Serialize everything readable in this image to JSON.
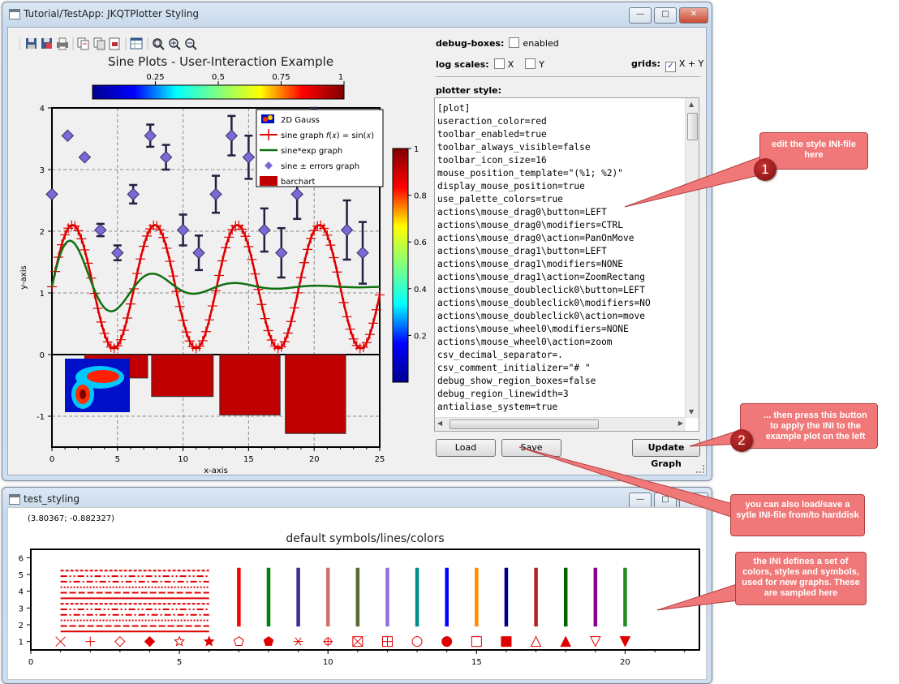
{
  "main_window": {
    "title": "Tutorial/TestApp: JKQTPlotter Styling",
    "win_buttons": {
      "minimize": "—",
      "maximize": "□",
      "close": "✕"
    },
    "toolbar_icons": [
      "save-data-icon",
      "save-image-icon",
      "print-icon",
      "copy-data-icon",
      "copy-image-icon",
      "save-pdf-icon",
      "show-data-table-icon",
      "zoom-all-icon",
      "zoom-in-icon",
      "zoom-out-icon"
    ],
    "plot": {
      "title": "Sine Plots - User-Interaction Example",
      "xlabel": "x-axis",
      "ylabel": "y-axis",
      "colorbar_top_ticks": [
        "0.25",
        "0.5",
        "0.75",
        "1"
      ],
      "colorbar_right_ticks": [
        "1",
        "0.8",
        "0.6",
        "0.4",
        "0.2"
      ],
      "legend": [
        {
          "label": "2D Gauss",
          "icon": "heatmap-icon"
        },
        {
          "label": "sine graph 𝑓(𝑥) =  sin(𝑥)",
          "icon": "red-plus-line-icon"
        },
        {
          "label": "sine*exp graph",
          "icon": "green-line-icon"
        },
        {
          "label": "sine ± errors graph",
          "icon": "purple-diamond-icon"
        },
        {
          "label": "barchart",
          "icon": "darkred-bar-icon"
        }
      ]
    },
    "chart_data": {
      "type": "line",
      "xlim": [
        0,
        25
      ],
      "ylim": [
        -1.5,
        4
      ],
      "x_ticks": [
        "0",
        "5",
        "10",
        "15",
        "20",
        "25"
      ],
      "y_ticks": [
        "-1",
        "0",
        "1",
        "2",
        "3",
        "4"
      ],
      "grid": true,
      "legend_position": "top-right",
      "series": [
        {
          "name": "sine graph 𝑓(𝑥) =  sin(𝑥)",
          "kind": "line",
          "function": "1.1+sin(x)",
          "x_start": 0,
          "x_end": 25,
          "color": "#e00000"
        },
        {
          "name": "sine*exp graph",
          "kind": "line",
          "function": "1.1+sin(x)*exp(-x/5)",
          "x_start": 0,
          "x_end": 25,
          "color": "#107010"
        },
        {
          "name": "sine ± errors graph",
          "kind": "scatter-errorbars",
          "color": "#7a6ad8",
          "points": [
            {
              "x": 0,
              "y": 2.6,
              "err": 0
            },
            {
              "x": 1.2,
              "y": 3.55,
              "err": 0
            },
            {
              "x": 2.5,
              "y": 3.2,
              "err": 0
            },
            {
              "x": 3.7,
              "y": 2.02,
              "err": 0.1
            },
            {
              "x": 5,
              "y": 1.65,
              "err": 0.12
            },
            {
              "x": 6.2,
              "y": 2.6,
              "err": 0.15
            },
            {
              "x": 7.5,
              "y": 3.55,
              "err": 0.18
            },
            {
              "x": 8.7,
              "y": 3.2,
              "err": 0.2
            },
            {
              "x": 10,
              "y": 2.02,
              "err": 0.25
            },
            {
              "x": 11.2,
              "y": 1.65,
              "err": 0.28
            },
            {
              "x": 12.5,
              "y": 2.6,
              "err": 0.3
            },
            {
              "x": 13.7,
              "y": 3.55,
              "err": 0.32
            },
            {
              "x": 15,
              "y": 3.2,
              "err": 0.35
            },
            {
              "x": 16.2,
              "y": 2.02,
              "err": 0.35
            },
            {
              "x": 17.5,
              "y": 1.65,
              "err": 0.4
            },
            {
              "x": 18.7,
              "y": 2.6,
              "err": 0.4
            },
            {
              "x": 20,
              "y": 3.55,
              "err": 0.45
            },
            {
              "x": 21.2,
              "y": 3.2,
              "err": 0.45
            },
            {
              "x": 22.5,
              "y": 2.02,
              "err": 0.48
            },
            {
              "x": 23.7,
              "y": 1.65,
              "err": 0.5
            }
          ]
        },
        {
          "name": "barchart",
          "kind": "bar",
          "color": "#c00000",
          "bars": [
            {
              "x0": 2.5,
              "x1": 7.3,
              "y": -0.38
            },
            {
              "x0": 7.6,
              "x1": 12.3,
              "y": -0.68
            },
            {
              "x0": 12.8,
              "x1": 17.4,
              "y": -0.98
            },
            {
              "x0": 17.8,
              "x1": 22.4,
              "y": -1.28
            }
          ]
        }
      ]
    },
    "controls": {
      "debug_boxes_label": "debug-boxes:",
      "debug_enabled_label": "enabled",
      "log_scales_label": "log scales:",
      "log_x_label": "X",
      "log_y_label": "Y",
      "grids_label": "grids:",
      "grids_value_label": "X + Y",
      "grids_checked": true,
      "plotter_style_label": "plotter style:",
      "load_label": "Load",
      "save_label": "Save",
      "update_label": "Update Graph"
    },
    "ini_lines": [
      "[plot]",
      "useraction_color=red",
      "toolbar_enabled=true",
      "toolbar_always_visible=false",
      "toolbar_icon_size=16",
      "mouse_position_template=\"(%1; %2)\"",
      "display_mouse_position=true",
      "use_palette_colors=true",
      "actions\\mouse_drag0\\button=LEFT",
      "actions\\mouse_drag0\\modifiers=CTRL",
      "actions\\mouse_drag0\\action=PanOnMove",
      "actions\\mouse_drag1\\button=LEFT",
      "actions\\mouse_drag1\\modifiers=NONE",
      "actions\\mouse_drag1\\action=ZoomRectang",
      "actions\\mouse_doubleclick0\\button=LEFT",
      "actions\\mouse_doubleclick0\\modifiers=NO",
      "actions\\mouse_doubleclick0\\action=move",
      "actions\\mouse_wheel0\\modifiers=NONE",
      "actions\\mouse_wheel0\\action=zoom",
      "csv_decimal_separator=.",
      "csv_comment_initializer=\"# \"",
      "debug_show_region_boxes=false",
      "debug_region_linewidth=3",
      "antialiase_system=true"
    ]
  },
  "test_window": {
    "title": "test_styling",
    "mouse_position": "(3.80367; -0.882327)",
    "plot_title": "default symbols/lines/colors",
    "x_ticks": [
      "0",
      "5",
      "10",
      "15",
      "20"
    ],
    "y_ticks": [
      "1",
      "2",
      "3",
      "4",
      "5",
      "6"
    ],
    "line_colors": [
      "#ff0000",
      "#008000",
      "#3b2d8f",
      "#d07070",
      "#556b2f",
      "#9370db",
      "#008b8b",
      "#0000ff",
      "#ff8c00",
      "#000080",
      "#b22222",
      "#006400",
      "#8b008b",
      "#228b22"
    ],
    "symbols": [
      "x-symbol",
      "plus-symbol",
      "diamond-symbol",
      "filled-diamond-symbol",
      "star-symbol",
      "filled-star-symbol",
      "pentagon-symbol",
      "filled-pentagon-symbol",
      "asterisk-symbol",
      "target-symbol",
      "boxed-x-symbol",
      "boxed-plus-symbol",
      "circle-symbol",
      "filled-circle-symbol",
      "rect-symbol",
      "filled-rect-symbol",
      "triangle-symbol",
      "filled-triangle-symbol",
      "down-triangle-symbol",
      "filled-down-triangle-symbol"
    ]
  },
  "callouts": {
    "c1": "edit the style INI-file here",
    "c2": "... then press this button to apply the INI to the example plot on the left",
    "c3": "you can also load/save a sytle INI-file from/to harddisk",
    "c4": "the INI defines a set of colors, styles and symbols, used for new graphs. These are sampled here",
    "n1": "1",
    "n2": "2"
  }
}
